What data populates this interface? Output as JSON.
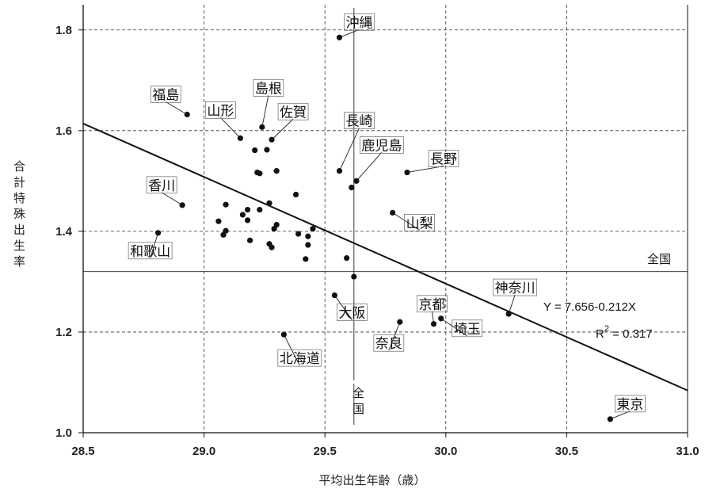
{
  "chart_data": {
    "type": "scatter",
    "xlabel": "平均出生年齢（歳）",
    "ylabel": "合計特殊出生率",
    "xlim": [
      28.5,
      31.0
    ],
    "ylim": [
      1.0,
      1.85
    ],
    "xticks": [
      "28.5",
      "29.0",
      "29.5",
      "30.0",
      "30.5",
      "31.0"
    ],
    "yticks": [
      "1.0",
      "1.2",
      "1.4",
      "1.6",
      "1.8"
    ],
    "grid": true,
    "points": [
      {
        "x": 29.56,
        "y": 1.785,
        "label": "沖縄"
      },
      {
        "x": 28.93,
        "y": 1.632,
        "label": "福島"
      },
      {
        "x": 29.24,
        "y": 1.607,
        "label": "島根"
      },
      {
        "x": 29.15,
        "y": 1.585,
        "label": "山形"
      },
      {
        "x": 29.28,
        "y": 1.582,
        "label": "佐賀"
      },
      {
        "x": 29.56,
        "y": 1.52,
        "label": "長崎"
      },
      {
        "x": 29.63,
        "y": 1.5,
        "label": "鹿児島"
      },
      {
        "x": 29.84,
        "y": 1.517,
        "label": "長野"
      },
      {
        "x": 28.91,
        "y": 1.452,
        "label": "香川"
      },
      {
        "x": 29.78,
        "y": 1.437,
        "label": "山梨"
      },
      {
        "x": 28.81,
        "y": 1.397,
        "label": "和歌山"
      },
      {
        "x": 29.54,
        "y": 1.273,
        "label": "大阪"
      },
      {
        "x": 29.81,
        "y": 1.22,
        "label": "奈良"
      },
      {
        "x": 29.95,
        "y": 1.216,
        "label": "京都"
      },
      {
        "x": 29.98,
        "y": 1.227,
        "label": "埼玉"
      },
      {
        "x": 30.26,
        "y": 1.236,
        "label": "神奈川"
      },
      {
        "x": 29.33,
        "y": 1.195,
        "label": "北海道"
      },
      {
        "x": 30.68,
        "y": 1.027,
        "label": "東京"
      },
      {
        "x": 29.21,
        "y": 1.561
      },
      {
        "x": 29.26,
        "y": 1.562
      },
      {
        "x": 29.22,
        "y": 1.517
      },
      {
        "x": 29.23,
        "y": 1.515
      },
      {
        "x": 29.3,
        "y": 1.52
      },
      {
        "x": 29.27,
        "y": 1.456
      },
      {
        "x": 29.38,
        "y": 1.473
      },
      {
        "x": 29.09,
        "y": 1.453
      },
      {
        "x": 29.23,
        "y": 1.443
      },
      {
        "x": 29.18,
        "y": 1.443
      },
      {
        "x": 29.16,
        "y": 1.433
      },
      {
        "x": 29.18,
        "y": 1.422
      },
      {
        "x": 29.06,
        "y": 1.42
      },
      {
        "x": 29.3,
        "y": 1.413
      },
      {
        "x": 29.29,
        "y": 1.405
      },
      {
        "x": 29.45,
        "y": 1.405
      },
      {
        "x": 29.09,
        "y": 1.401
      },
      {
        "x": 29.08,
        "y": 1.393
      },
      {
        "x": 29.39,
        "y": 1.395
      },
      {
        "x": 29.43,
        "y": 1.39
      },
      {
        "x": 29.19,
        "y": 1.382
      },
      {
        "x": 29.27,
        "y": 1.375
      },
      {
        "x": 29.43,
        "y": 1.373
      },
      {
        "x": 29.28,
        "y": 1.368
      },
      {
        "x": 29.42,
        "y": 1.345
      },
      {
        "x": 29.59,
        "y": 1.347
      },
      {
        "x": 29.61,
        "y": 1.487
      },
      {
        "x": 29.62,
        "y": 1.31
      }
    ],
    "regression": {
      "intercept": 7.656,
      "slope": -0.212
    },
    "national": {
      "x": 29.62,
      "y": 1.32,
      "hlabel": "全国",
      "vlabel": [
        "全",
        "国"
      ]
    },
    "equation": "Y = 7.656-0.212X",
    "r2_label": "R",
    "r2_sup": "2",
    "r2_value": " = 0.317"
  }
}
